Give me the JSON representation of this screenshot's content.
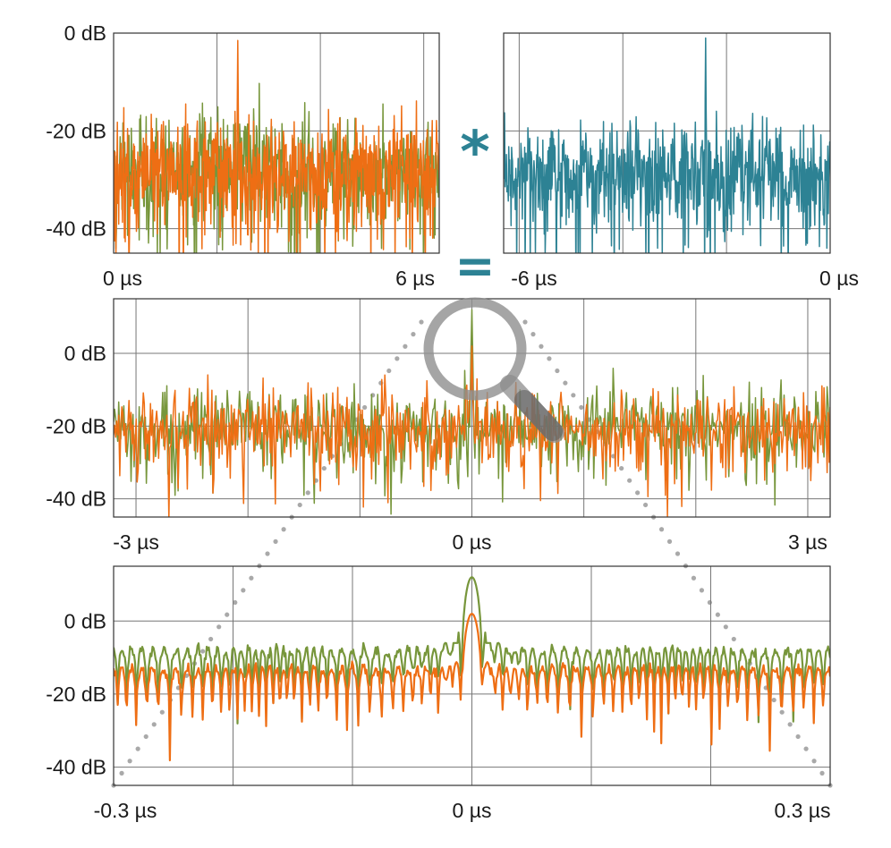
{
  "colors": {
    "green": "#77963b",
    "orange": "#ee6e14",
    "teal": "#2d8294",
    "dots": "#a9a9a9",
    "magnifier": "#8e8e8e"
  },
  "operators": {
    "convolve": "*",
    "equals": "="
  },
  "icons": [
    "magnifier-icon"
  ],
  "chart_data": [
    {
      "id": "top-left",
      "type": "line",
      "x_unit": "µs",
      "xlim": [
        0,
        6.3
      ],
      "ylim": [
        -45,
        0
      ],
      "x_ticks": [
        0,
        6
      ],
      "x_tick_labels": [
        "0 µs",
        "6 µs"
      ],
      "y_ticks": [
        0,
        -20,
        -40
      ],
      "y_tick_labels": [
        "0 dB",
        "-20 dB",
        "-40 dB"
      ],
      "x_grid": [
        0,
        2,
        4,
        6
      ],
      "grid": true,
      "noise_floor_db": -28,
      "peaks": [
        {
          "x": 2.4,
          "y": -1.5
        }
      ],
      "series": [
        {
          "color": "green",
          "values_summary": "noise around -28 dB, range -45 to -10 dB"
        },
        {
          "color": "orange",
          "values_summary": "noise around -28 dB, peak -1.5 dB at 2.4 µs"
        }
      ]
    },
    {
      "id": "top-right",
      "type": "line",
      "x_unit": "µs",
      "xlim": [
        -6.3,
        0
      ],
      "ylim": [
        -45,
        0
      ],
      "x_ticks": [
        -6,
        0
      ],
      "x_tick_labels": [
        "-6 µs",
        "0 µs"
      ],
      "x_grid": [
        -6,
        -4,
        -2,
        0
      ],
      "grid": true,
      "noise_floor_db": -28,
      "peaks": [
        {
          "x": -2.4,
          "y": -1
        }
      ],
      "series": [
        {
          "color": "teal",
          "values_summary": "noise around -28 dB, peak -1 dB at -2.4 µs"
        }
      ]
    },
    {
      "id": "middle",
      "type": "line",
      "x_unit": "µs",
      "xlim": [
        -3.2,
        3.2
      ],
      "ylim": [
        -45,
        15
      ],
      "x_ticks": [
        -3,
        0,
        3
      ],
      "x_tick_labels": [
        "-3 µs",
        "0 µs",
        "3 µs"
      ],
      "y_ticks": [
        0,
        -20,
        -40
      ],
      "y_tick_labels": [
        "0 dB",
        "-20 dB",
        "-40 dB"
      ],
      "x_grid": [
        -3,
        -2,
        -1,
        0,
        1,
        2,
        3
      ],
      "grid": true,
      "noise_floor_db": -20,
      "peaks": [
        {
          "x": 0,
          "y": 12,
          "series": "green"
        },
        {
          "x": 0,
          "y": 2,
          "series": "orange"
        }
      ],
      "series": [
        {
          "color": "green",
          "values_summary": "noise around -20 dB, peak 12 dB at 0 µs"
        },
        {
          "color": "orange",
          "values_summary": "noise around -20 dB, peak 2 dB at 0 µs"
        }
      ]
    },
    {
      "id": "bottom",
      "type": "line",
      "x_unit": "µs",
      "xlim": [
        -0.3,
        0.3
      ],
      "ylim": [
        -45,
        15
      ],
      "x_ticks": [
        -0.3,
        0,
        0.3
      ],
      "x_tick_labels": [
        "-0.3 µs",
        "0 µs",
        "0.3 µs"
      ],
      "y_ticks": [
        0,
        -20,
        -40
      ],
      "y_tick_labels": [
        "0 dB",
        "-20 dB",
        "-40 dB"
      ],
      "x_grid": [
        -0.2,
        -0.1,
        0,
        0.1,
        0.2
      ],
      "grid": true,
      "peaks": [
        {
          "x": 0,
          "y": 12,
          "series": "green"
        },
        {
          "x": 0,
          "y": 2,
          "series": "orange"
        }
      ],
      "series": [
        {
          "color": "green",
          "values_summary": "sinc-like sidelobes around -12 dB, main lobe 12 dB at 0 µs"
        },
        {
          "color": "orange",
          "values_summary": "sinc-like sidelobes around -17 dB, main lobe 2 dB at 0 µs"
        }
      ]
    }
  ]
}
